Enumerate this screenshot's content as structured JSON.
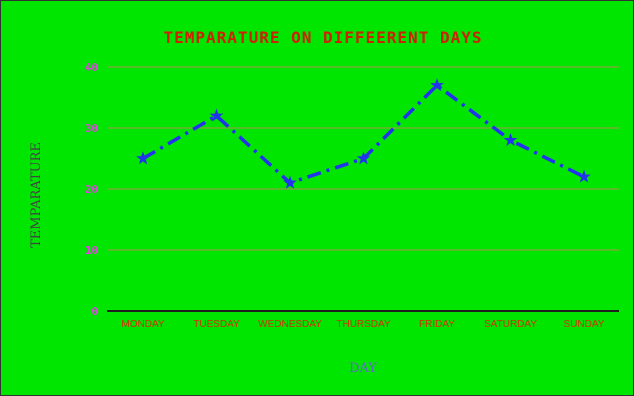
{
  "chart_data": {
    "type": "line",
    "title": "TEMPARATURE ON DIFFEERENT DAYS",
    "xlabel": "DAY",
    "ylabel": "TEMPARATURE",
    "categories": [
      "MONDAY",
      "TUESDAY",
      "WEDNESDAY",
      "THURSDAY",
      "FRIDAY",
      "SATURDAY",
      "SUNDAY"
    ],
    "series": [
      {
        "values": [
          25,
          32,
          21,
          25,
          37,
          28,
          22
        ]
      }
    ],
    "ylim": [
      0,
      40
    ],
    "yticks": [
      0,
      10,
      20,
      30,
      40
    ],
    "grid": "horizontal",
    "line_style": "dash-dot",
    "marker": "star",
    "colors": {
      "background": "#00e600",
      "title": "#cc2200",
      "ytick": "#e040e0",
      "xtick": "#cc3300",
      "xlabel": "#6666cc",
      "ylabel": "#444444",
      "gridline": "#b09050",
      "axis": "#202020",
      "series": "#2233ee",
      "frame": "#333333"
    }
  }
}
